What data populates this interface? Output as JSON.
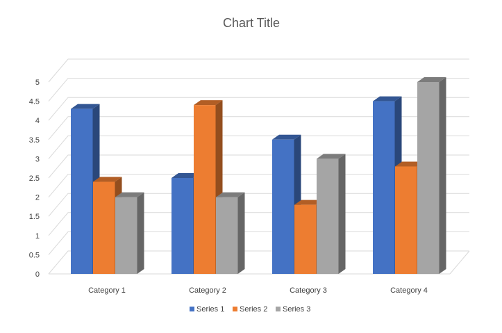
{
  "chart_data": {
    "type": "bar",
    "title": "Chart Title",
    "xlabel": "",
    "ylabel": "",
    "categories": [
      "Category 1",
      "Category 2",
      "Category 3",
      "Category 4"
    ],
    "series": [
      {
        "name": "Series 1",
        "color": "#4472c4",
        "values": [
          4.3,
          2.5,
          3.5,
          4.5
        ]
      },
      {
        "name": "Series 2",
        "color": "#ed7d31",
        "values": [
          2.4,
          4.4,
          1.8,
          2.8
        ]
      },
      {
        "name": "Series 3",
        "color": "#a5a5a5",
        "values": [
          2.0,
          2.0,
          3.0,
          5.0
        ]
      }
    ],
    "ylim": [
      0,
      5
    ],
    "yticks": [
      "0",
      "0.5",
      "1",
      "1.5",
      "2",
      "2.5",
      "3",
      "3.5",
      "4",
      "4.5",
      "5"
    ],
    "grid": true,
    "style": "3d-clustered-column",
    "legend": "bottom"
  }
}
